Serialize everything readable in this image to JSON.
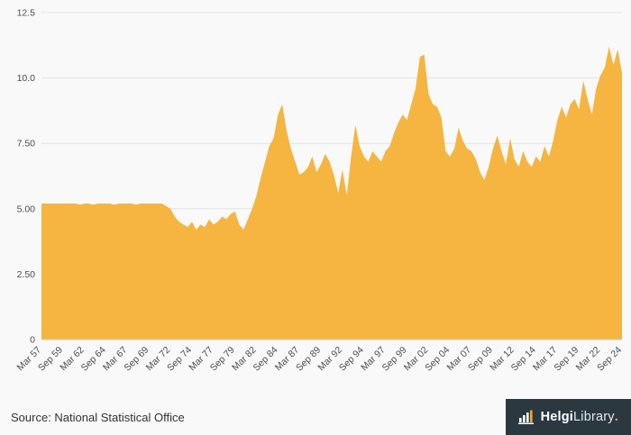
{
  "colors": {
    "area": "#F5B540",
    "grid": "#e3e3e3",
    "axis_line": "#cccccc",
    "axis_text": "#4d4d4d",
    "footer_bg": "#2b3840",
    "accent": "#f5a623",
    "background": "#f9f9f9"
  },
  "chart_data": {
    "type": "area",
    "title": "",
    "xlabel": "",
    "ylabel": "",
    "legend": "none",
    "grid": "horizontal",
    "x_start": "Mar 1957",
    "x_end": "Sep 2024",
    "x_frequency": "semiannual",
    "ylim": [
      0,
      12.5
    ],
    "y_tick_values": [
      0,
      2.5,
      5,
      7.5,
      10,
      12.5
    ],
    "y_tick_labels": [
      "0",
      "2.50",
      "5.00",
      "7.50",
      "10.0",
      "12.5"
    ],
    "x_tick_every": 5,
    "x_tick_labels": [
      "Mar 57",
      "Sep 59",
      "Mar 62",
      "Sep 64",
      "Mar 67",
      "Sep 69",
      "Mar 72",
      "Sep 74",
      "Mar 77",
      "Sep 79",
      "Mar 82",
      "Sep 84",
      "Mar 87",
      "Sep 89",
      "Mar 92",
      "Sep 94",
      "Mar 97",
      "Sep 99",
      "Mar 02",
      "Sep 04",
      "Mar 07",
      "Sep 09",
      "Mar 12",
      "Sep 14",
      "Mar 17",
      "Sep 19",
      "Mar 22",
      "Sep 24"
    ],
    "values": [
      5.2,
      5.2,
      5.2,
      5.2,
      5.2,
      5.2,
      5.2,
      5.2,
      5.2,
      5.15,
      5.2,
      5.2,
      5.15,
      5.2,
      5.2,
      5.2,
      5.2,
      5.15,
      5.2,
      5.2,
      5.2,
      5.2,
      5.15,
      5.2,
      5.2,
      5.2,
      5.2,
      5.2,
      5.2,
      5.1,
      5.0,
      4.7,
      4.5,
      4.4,
      4.3,
      4.5,
      4.2,
      4.4,
      4.3,
      4.6,
      4.4,
      4.5,
      4.7,
      4.6,
      4.8,
      4.9,
      4.4,
      4.2,
      4.6,
      5.0,
      5.5,
      6.2,
      6.8,
      7.4,
      7.7,
      8.6,
      9.0,
      8.0,
      7.3,
      6.8,
      6.3,
      6.4,
      6.6,
      7.0,
      6.4,
      6.7,
      7.1,
      6.8,
      6.3,
      5.6,
      6.5,
      5.5,
      7.0,
      8.2,
      7.4,
      7.0,
      6.8,
      7.2,
      7.0,
      6.8,
      7.2,
      7.4,
      7.9,
      8.3,
      8.6,
      8.4,
      9.0,
      9.6,
      10.8,
      10.9,
      9.4,
      9.0,
      8.9,
      8.5,
      7.2,
      7.0,
      7.3,
      8.1,
      7.6,
      7.3,
      7.2,
      6.9,
      6.4,
      6.1,
      6.6,
      7.3,
      7.8,
      7.2,
      6.7,
      7.7,
      6.9,
      6.6,
      7.2,
      6.8,
      6.6,
      7.0,
      6.8,
      7.4,
      7.0,
      7.6,
      8.4,
      8.9,
      8.5,
      9.0,
      9.2,
      8.8,
      9.9,
      9.2,
      8.6,
      9.6,
      10.1,
      10.4,
      11.2,
      10.5,
      11.1,
      10.2
    ]
  },
  "footer": {
    "source": "Source: National Statistical Office",
    "brand": {
      "name_primary": "Helgi",
      "name_secondary": "Library",
      "dot": "."
    },
    "logo_icon": "building-columns-icon"
  }
}
